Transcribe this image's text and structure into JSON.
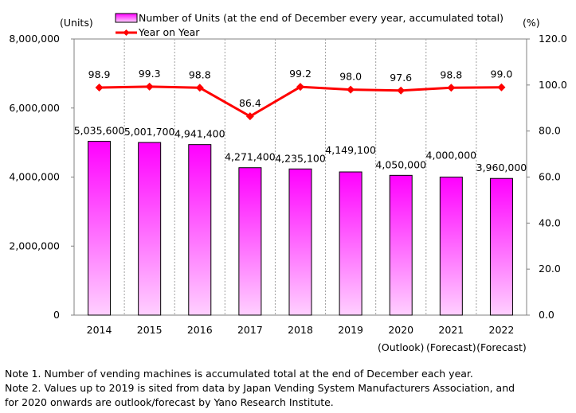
{
  "chart_data": {
    "type": "bar",
    "categories": [
      "2014",
      "2015",
      "2016",
      "2017",
      "2018",
      "2019",
      "2020",
      "2021",
      "2022"
    ],
    "category_sublabels": [
      "",
      "",
      "",
      "",
      "",
      "",
      "(Outlook)",
      "(Forecast)",
      "(Forecast)"
    ],
    "series": [
      {
        "name": "Number of Units  (at the end of December every year, accumulated total)",
        "type": "bar",
        "axis": "left",
        "values": [
          5035600,
          5001700,
          4941400,
          4271400,
          4235100,
          4149100,
          4050000,
          4000000,
          3960000
        ],
        "labels": [
          "5,035,600",
          "5,001,700",
          "4,941,400",
          "4,271,400",
          "4,235,100",
          "4,149,100",
          "4,050,000",
          "4,000,000",
          "3,960,000"
        ]
      },
      {
        "name": "Year on Year",
        "type": "line",
        "axis": "right",
        "values": [
          98.9,
          99.3,
          98.8,
          86.4,
          99.2,
          98.0,
          97.6,
          98.8,
          99.0
        ],
        "labels": [
          "98.9",
          "99.3",
          "98.8",
          "86.4",
          "99.2",
          "98.0",
          "97.6",
          "98.8",
          "99.0"
        ]
      }
    ],
    "y_left": {
      "unit": "(Units)",
      "range": [
        0,
        8000000
      ],
      "ticks": [
        0,
        2000000,
        4000000,
        6000000,
        8000000
      ],
      "tick_labels": [
        "0",
        "2,000,000",
        "4,000,000",
        "6,000,000",
        "8,000,000"
      ]
    },
    "y_right": {
      "unit": "(%)",
      "range": [
        0,
        120
      ],
      "ticks": [
        0,
        20,
        40,
        60,
        80,
        100,
        120
      ],
      "tick_labels": [
        "0.0",
        "20.0",
        "40.0",
        "60.0",
        "80.0",
        "100.0",
        "120.0"
      ]
    },
    "grid": "vertical-dashed",
    "legend_position": "top",
    "colors": {
      "bar_top": "#ff00ff",
      "bar_bottom": "#ffd0ff",
      "line": "#ff0000"
    }
  },
  "notes": [
    "Note 1. Number of vending machines is accumulated total at the end of December each year.",
    "Note 2. Values up to 2019 is sited from data by Japan Vending System Manufacturers Association, and",
    "for 2020 onwards are outlook/forecast by Yano Research Institute."
  ]
}
